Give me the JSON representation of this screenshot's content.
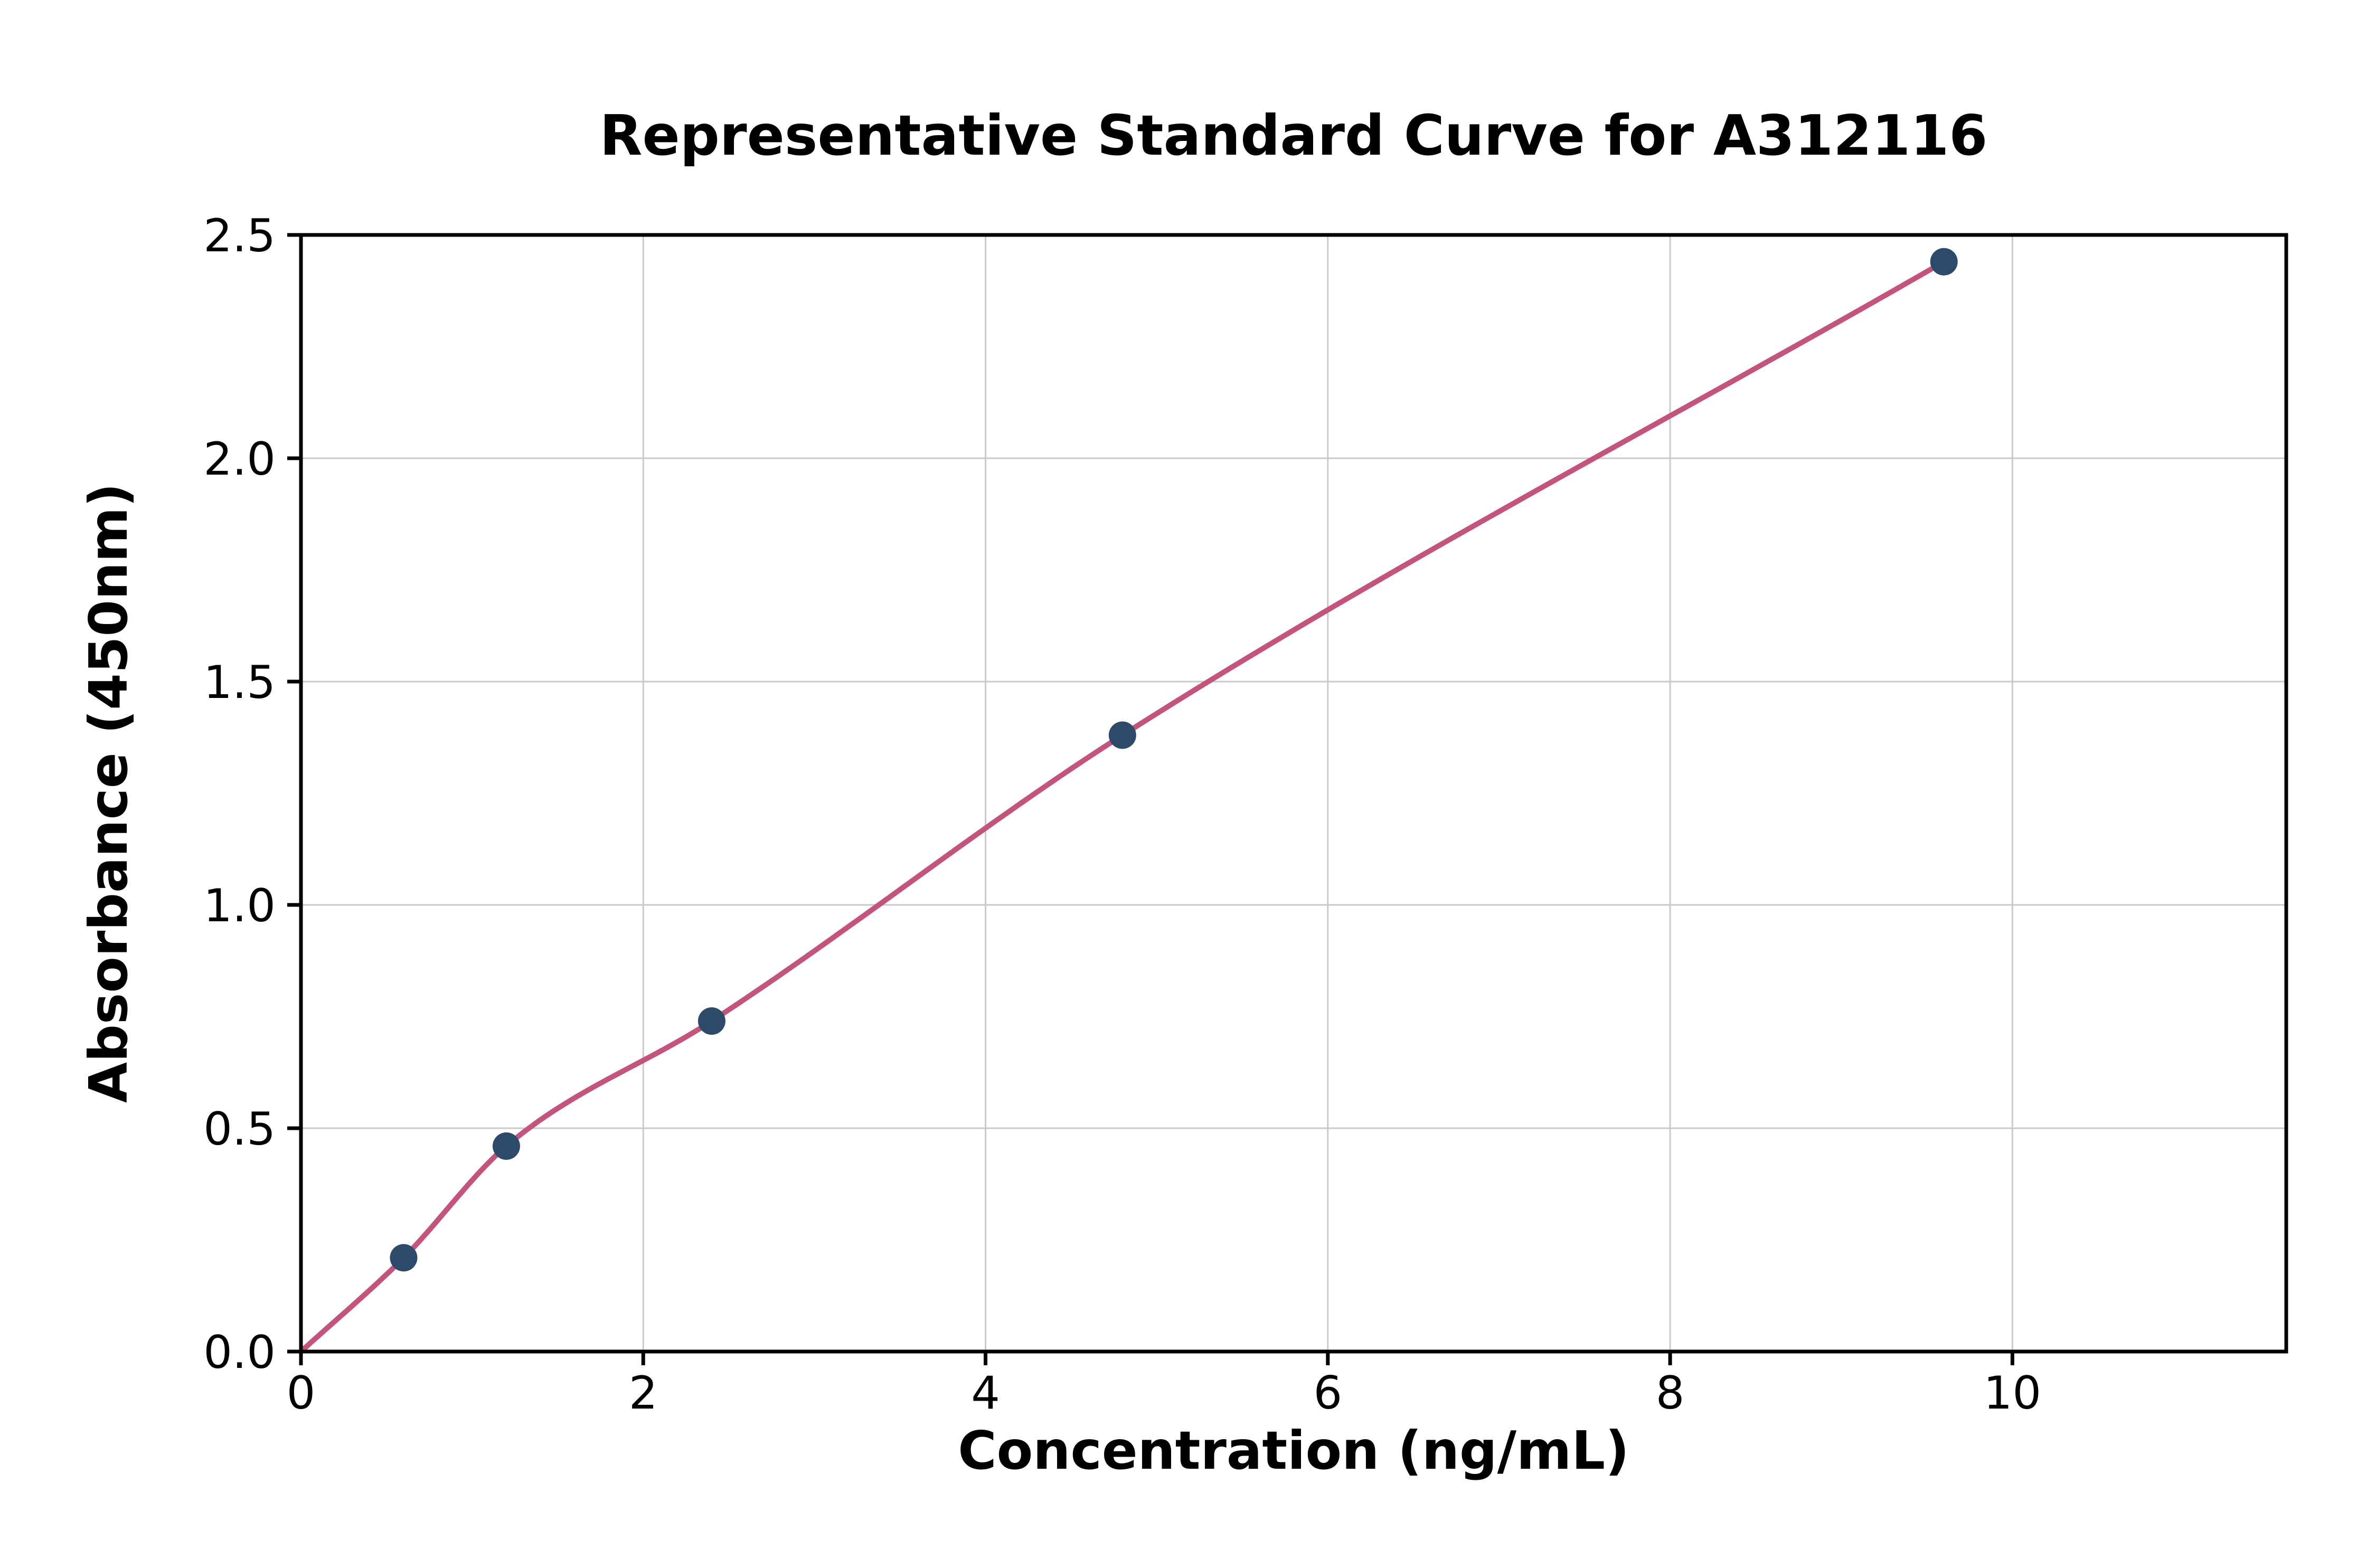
{
  "chart_data": {
    "type": "scatter",
    "title": "Representative Standard Curve for A312116",
    "xlabel": "Concentration (ng/mL)",
    "ylabel": "Absorbance (450nm)",
    "xlim": [
      0,
      11.6
    ],
    "ylim": [
      0,
      2.5
    ],
    "xticks": [
      0,
      2,
      4,
      6,
      8,
      10
    ],
    "xtick_labels": [
      "0",
      "2",
      "4",
      "6",
      "8",
      "10"
    ],
    "yticks": [
      0,
      0.5,
      1.0,
      1.5,
      2.0,
      2.5
    ],
    "ytick_labels": [
      "0.0",
      "0.5",
      "1.0",
      "1.5",
      "2.0",
      "2.5"
    ],
    "grid": true,
    "legend": "none",
    "points": {
      "x": [
        0.6,
        1.2,
        2.4,
        4.8,
        9.6
      ],
      "y": [
        0.21,
        0.46,
        0.74,
        1.38,
        2.44
      ]
    },
    "fit_curve_points": {
      "x": [
        0,
        0.6,
        1.2,
        2.4,
        4.8,
        9.6
      ],
      "y": [
        0,
        0.21,
        0.46,
        0.74,
        1.38,
        2.44
      ]
    },
    "colors": {
      "line": "#c2547e",
      "marker": "#2e4a6b",
      "marker_edge": "#24395364",
      "grid": "#c9c9c9",
      "axis": "#000000",
      "background": "#ffffff",
      "text": "#000000"
    }
  }
}
